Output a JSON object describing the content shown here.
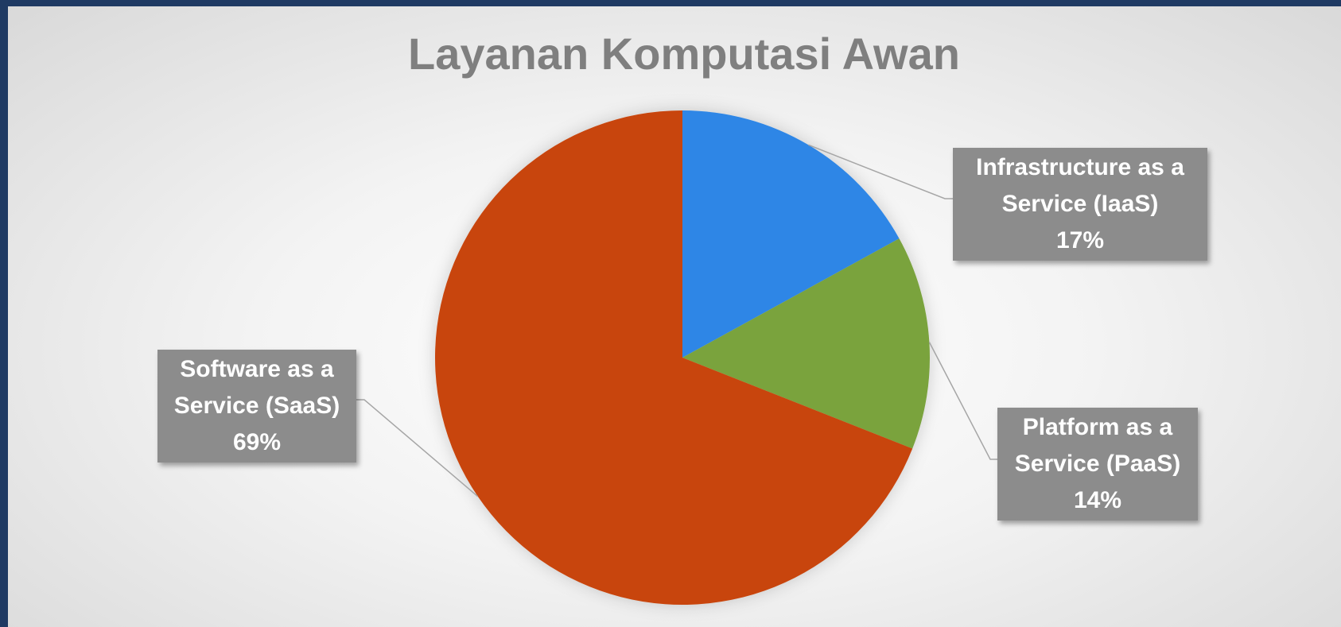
{
  "chart_data": {
    "type": "pie",
    "title": "Layanan Komputasi Awan",
    "categories": [
      "Infrastructure as a Service (IaaS)",
      "Platform as a Service (PaaS)",
      "Software as a Service (SaaS)"
    ],
    "values": [
      17,
      14,
      69
    ],
    "value_labels": [
      "17%",
      "14%",
      "69%"
    ],
    "colors": [
      "#2e86e6",
      "#7aa33c",
      "#c8440a"
    ]
  }
}
